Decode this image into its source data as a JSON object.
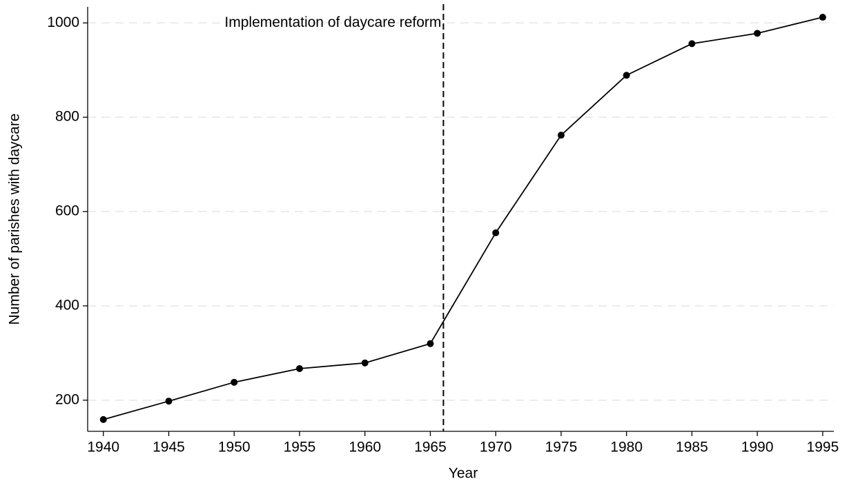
{
  "chart_data": {
    "type": "line",
    "x": [
      1940,
      1945,
      1950,
      1955,
      1960,
      1965,
      1970,
      1975,
      1980,
      1985,
      1990,
      1995
    ],
    "values": [
      159,
      198,
      238,
      267,
      279,
      320,
      555,
      762,
      889,
      956,
      978,
      1012
    ],
    "color": "#000000",
    "x_label": "Year",
    "y_label": "Number of parishes with daycare",
    "xlim": [
      1938.8,
      1995.85
    ],
    "ylim": [
      134,
      1034
    ],
    "xticks": [
      1940,
      1945,
      1950,
      1955,
      1960,
      1965,
      1970,
      1975,
      1980,
      1985,
      1990,
      1995
    ],
    "yticks": [
      200,
      400,
      600,
      800,
      1000
    ],
    "grid": true,
    "vline": 1966,
    "annotation": "Implementation of daycare reform"
  }
}
